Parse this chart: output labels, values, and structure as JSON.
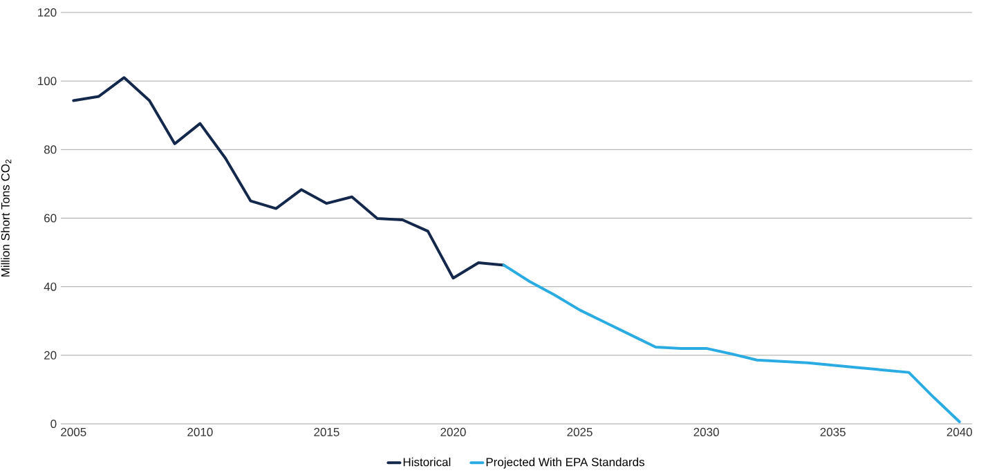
{
  "chart_data": {
    "type": "line",
    "ylabel": "Million Short Tons CO$_{2}$",
    "xlim": [
      2004.5,
      2040.5
    ],
    "xticks": [
      2005,
      2010,
      2015,
      2020,
      2025,
      2030,
      2035,
      2040
    ],
    "ylim": [
      0,
      120
    ],
    "yticks": [
      0,
      20,
      40,
      60,
      80,
      100,
      120
    ],
    "grid": "y",
    "legend": "bottom",
    "marker": "none",
    "line_style": "solid",
    "series": [
      {
        "name": "Historical",
        "color": "#13284b",
        "x": [
          2005,
          2006,
          2007,
          2008,
          2009,
          2010,
          2011,
          2012,
          2013,
          2014,
          2015,
          2016,
          2017,
          2018,
          2019,
          2020,
          2021,
          2022
        ],
        "values": [
          94.3,
          95.5,
          101,
          94.3,
          81.7,
          87.6,
          77.5,
          65,
          62.8,
          68.3,
          64.3,
          66.2,
          59.9,
          59.5,
          56.2,
          42.5,
          47,
          46.3
        ]
      },
      {
        "name": "Projected With EPA Standards",
        "color": "#2aace2",
        "x": [
          2022,
          2023,
          2024,
          2025,
          2026,
          2027,
          2028,
          2029,
          2030,
          2031,
          2032,
          2033,
          2034,
          2035,
          2036,
          2037,
          2038,
          2039,
          2040
        ],
        "values": [
          46.3,
          41.6,
          37.6,
          33.2,
          29.6,
          26,
          22.4,
          22,
          22,
          20.4,
          18.6,
          18.2,
          17.8,
          17.1,
          16.4,
          15.7,
          15,
          7.6,
          0.6
        ]
      }
    ]
  }
}
